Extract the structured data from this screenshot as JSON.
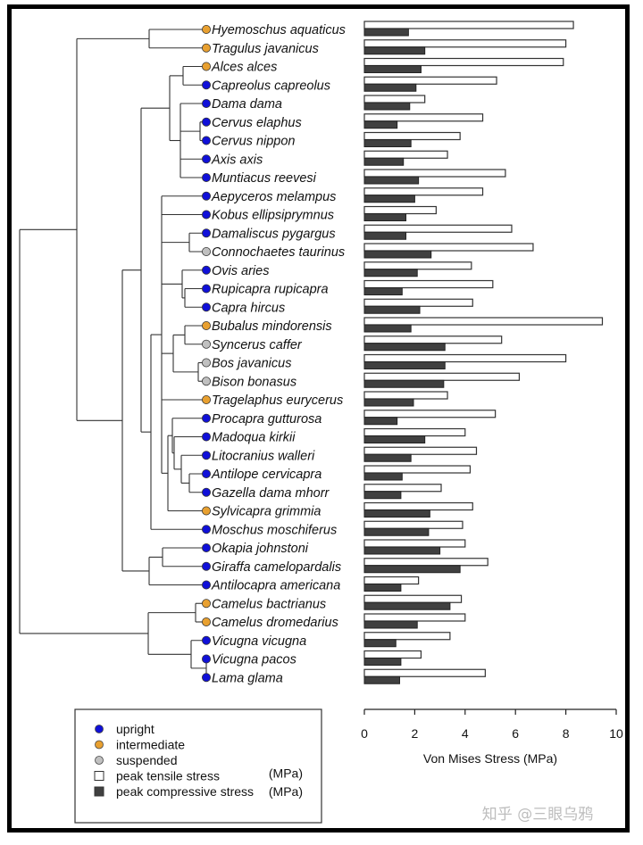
{
  "chart_data": {
    "type": "bar",
    "orientation": "horizontal",
    "xlabel": "Von Mises Stress (MPa)",
    "xlim": [
      0,
      10
    ],
    "xticks": [
      0,
      2,
      4,
      6,
      8,
      10
    ],
    "grid": false,
    "categories": [
      "Hyemoschus aquaticus",
      "Tragulus javanicus",
      "Alces alces",
      "Capreolus capreolus",
      "Dama dama",
      "Cervus elaphus",
      "Cervus nippon",
      "Axis axis",
      "Muntiacus reevesi",
      "Aepyceros melampus",
      "Kobus ellipsiprymnus",
      "Damaliscus pygargus",
      "Connochaetes taurinus",
      "Ovis aries",
      "Rupicapra rupicapra",
      "Capra hircus",
      "Bubalus mindorensis",
      "Syncerus caffer",
      "Bos javanicus",
      "Bison bonasus",
      "Tragelaphus eurycerus",
      "Procapra gutturosa",
      "Madoqua kirkii",
      "Litocranius walleri",
      "Antilope cervicapra",
      "Gazella dama mhorr",
      "Sylvicapra grimmia",
      "Moschus moschiferus",
      "Okapia johnstoni",
      "Giraffa camelopardalis",
      "Antilocapra americana",
      "Camelus bactrianus",
      "Camelus dromedarius",
      "Vicugna vicugna",
      "Vicugna pacos",
      "Lama glama"
    ],
    "posture": [
      "intermediate",
      "intermediate",
      "intermediate",
      "upright",
      "upright",
      "upright",
      "upright",
      "upright",
      "upright",
      "upright",
      "upright",
      "upright",
      "suspended",
      "upright",
      "upright",
      "upright",
      "intermediate",
      "suspended",
      "suspended",
      "suspended",
      "intermediate",
      "upright",
      "upright",
      "upright",
      "upright",
      "upright",
      "intermediate",
      "upright",
      "upright",
      "upright",
      "upright",
      "intermediate",
      "intermediate",
      "upright",
      "upright",
      "upright"
    ],
    "series": [
      {
        "name": "peak tensile stress (MPa)",
        "color": "#ffffff",
        "values": [
          8.3,
          8.0,
          7.9,
          5.25,
          2.4,
          4.7,
          3.8,
          3.3,
          5.6,
          4.7,
          2.85,
          5.85,
          6.7,
          4.25,
          5.1,
          4.3,
          9.45,
          5.45,
          8.0,
          6.15,
          3.3,
          5.2,
          4.0,
          4.45,
          4.2,
          3.05,
          4.3,
          3.9,
          4.0,
          4.9,
          2.15,
          3.85,
          4.0,
          3.4,
          2.25,
          4.8
        ]
      },
      {
        "name": "peak compressive stress (MPa)",
        "color": "#404040",
        "values": [
          1.75,
          2.4,
          2.25,
          2.05,
          1.8,
          1.3,
          1.85,
          1.55,
          2.15,
          2.0,
          1.65,
          1.65,
          2.65,
          2.1,
          1.5,
          2.2,
          1.85,
          3.2,
          3.2,
          3.15,
          1.95,
          1.3,
          2.4,
          1.85,
          1.5,
          1.45,
          2.6,
          2.55,
          3.0,
          3.8,
          1.45,
          3.4,
          2.1,
          1.25,
          1.45,
          1.4
        ]
      }
    ],
    "tree_newick_topology": "(((Hyemoschus,Tragulus),(((Alces,Capreolus),(Dama,(Cervus_elaphus,Cervus_nippon),Axis,Muntiacus)),((Aepyceros,Kobus,(Damaliscus,Connochaetes),(Ovis,(Rupicapra,Capra)),((Bubalus,Syncerus),(Bos,Bison)),Tragelaphus,((Procapra,(Madoqua,(Litocranius,(Antilope,Gazella)))),Sylvicapra)),Moschus)),((Okapia,Giraffa),Antilocapra)),((Camelus_bactrianus,Camelus_dromedarius),(Vicugna_vicugna,(Vicugna_pacos,Lama))))",
    "legend": {
      "placement": "bottom-left",
      "entries": [
        {
          "label": "upright",
          "symbol": "circle",
          "color": "#1010d8"
        },
        {
          "label": "intermediate",
          "symbol": "circle",
          "color": "#e8a030"
        },
        {
          "label": "suspended",
          "symbol": "circle",
          "color": "#c0c0c0"
        },
        {
          "label": "peak tensile stress",
          "unit": "(MPa)",
          "symbol": "square",
          "color": "#ffffff"
        },
        {
          "label": "peak compressive stress",
          "unit": "(MPa)",
          "symbol": "square",
          "color": "#404040"
        }
      ]
    },
    "posture_colors": {
      "upright": "#1010d8",
      "intermediate": "#e8a030",
      "suspended": "#c0c0c0"
    }
  },
  "watermark": "知乎 @三眼乌鸦"
}
